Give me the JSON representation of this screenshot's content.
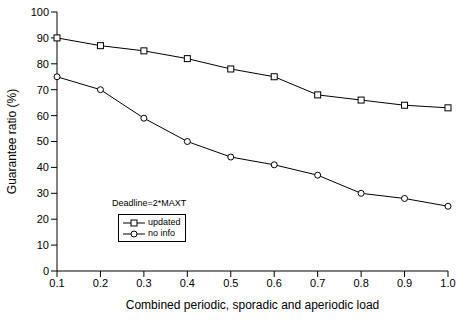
{
  "chart_data": {
    "type": "line",
    "xlabel": "Combined periodic, sporadic and aperiodic load",
    "ylabel": "Guarantee ratio (%)",
    "annotations": [
      "Deadline=2*MAXT"
    ],
    "categories": [
      "0.1",
      "0.2",
      "0.3",
      "0.4",
      "0.5",
      "0.6",
      "0.7",
      "0.8",
      "0.9",
      "1.0"
    ],
    "series": [
      {
        "name": "updated",
        "color": "#000000",
        "marker": "square",
        "values": [
          90,
          87,
          85,
          82,
          78,
          75,
          68,
          66,
          64,
          63
        ]
      },
      {
        "name": "no info",
        "color": "#000000",
        "marker": "circle",
        "values": [
          75,
          70,
          59,
          50,
          44,
          41,
          37,
          30,
          28,
          25
        ]
      }
    ],
    "ylim": [
      0,
      100
    ],
    "yticks": [
      0,
      10,
      20,
      30,
      40,
      50,
      60,
      70,
      80,
      90,
      100
    ],
    "grid": false,
    "legend": "lower left"
  }
}
